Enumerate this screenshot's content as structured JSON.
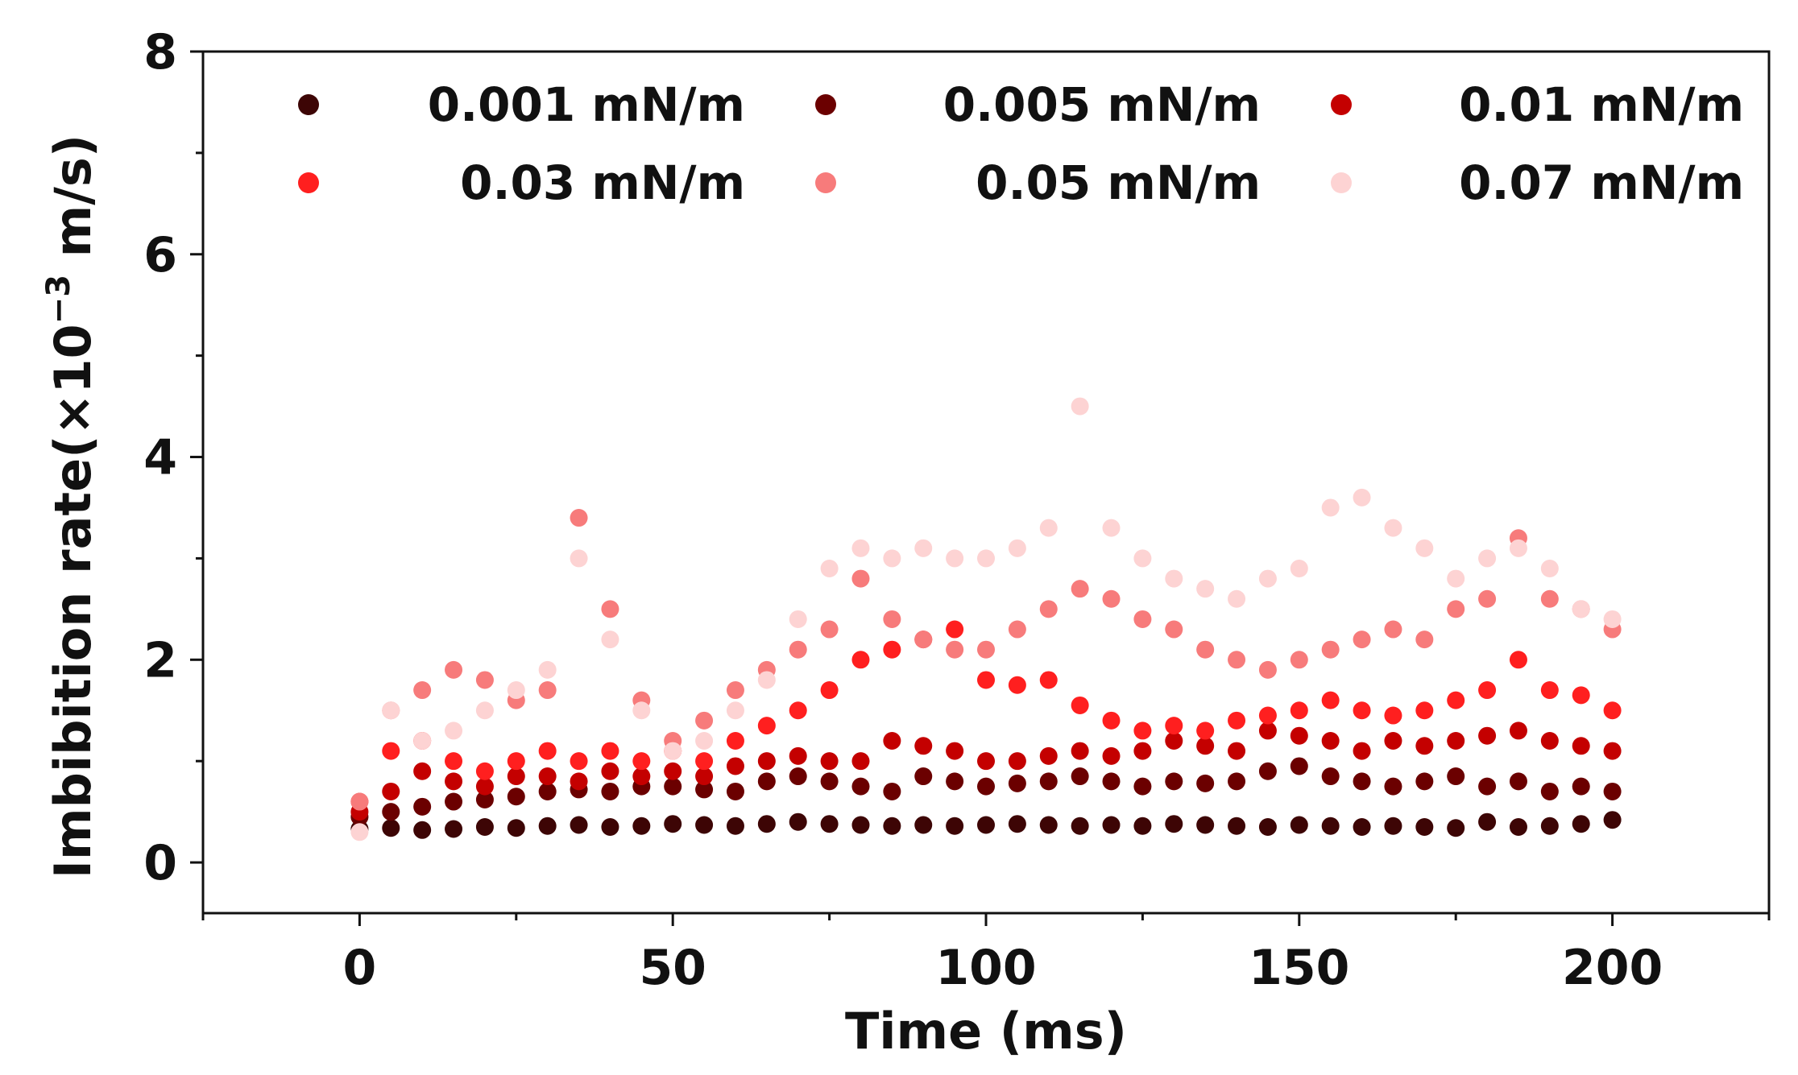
{
  "chart_data": {
    "type": "scatter",
    "title": "",
    "xlabel": "Time (ms)",
    "ylabel_prefix": "Imbibition rate(×10",
    "ylabel_exp": "−3",
    "ylabel_suffix": " m/s)",
    "xlim": [
      -25,
      225
    ],
    "ylim": [
      -0.5,
      8
    ],
    "x_ticks": [
      0,
      50,
      100,
      150,
      200
    ],
    "x_tick_labels": [
      "0",
      "50",
      "100",
      "150",
      "200"
    ],
    "y_ticks": [
      0,
      2,
      4,
      6,
      8
    ],
    "y_tick_labels": [
      "0",
      "2",
      "4",
      "6",
      "8"
    ],
    "grid": false,
    "legend_position": "top",
    "series": [
      {
        "name": "0.001 mN/m",
        "color": "#3d0505",
        "x": [
          0,
          5,
          10,
          15,
          20,
          25,
          30,
          35,
          40,
          45,
          50,
          55,
          60,
          65,
          70,
          75,
          80,
          85,
          90,
          95,
          100,
          105,
          110,
          115,
          120,
          125,
          130,
          135,
          140,
          145,
          150,
          155,
          160,
          165,
          170,
          175,
          180,
          185,
          190,
          195,
          200
        ],
        "y": [
          0.33,
          0.34,
          0.32,
          0.33,
          0.35,
          0.34,
          0.36,
          0.37,
          0.35,
          0.36,
          0.38,
          0.37,
          0.36,
          0.38,
          0.4,
          0.38,
          0.37,
          0.36,
          0.37,
          0.36,
          0.37,
          0.38,
          0.37,
          0.36,
          0.37,
          0.36,
          0.38,
          0.37,
          0.36,
          0.35,
          0.37,
          0.36,
          0.35,
          0.36,
          0.35,
          0.34,
          0.4,
          0.35,
          0.36,
          0.38,
          0.42
        ]
      },
      {
        "name": "0.005 mN/m",
        "color": "#6b0000",
        "x": [
          0,
          5,
          10,
          15,
          20,
          25,
          30,
          35,
          40,
          45,
          50,
          55,
          60,
          65,
          70,
          75,
          80,
          85,
          90,
          95,
          100,
          105,
          110,
          115,
          120,
          125,
          130,
          135,
          140,
          145,
          150,
          155,
          160,
          165,
          170,
          175,
          180,
          185,
          190,
          195,
          200
        ],
        "y": [
          0.45,
          0.5,
          0.55,
          0.6,
          0.62,
          0.65,
          0.7,
          0.72,
          0.7,
          0.75,
          0.75,
          0.72,
          0.7,
          0.8,
          0.85,
          0.8,
          0.75,
          0.7,
          0.85,
          0.8,
          0.75,
          0.78,
          0.8,
          0.85,
          0.8,
          0.75,
          0.8,
          0.78,
          0.8,
          0.9,
          0.95,
          0.85,
          0.8,
          0.75,
          0.8,
          0.85,
          0.75,
          0.8,
          0.7,
          0.75,
          0.7
        ]
      },
      {
        "name": "0.01 mN/m",
        "color": "#c40000",
        "x": [
          0,
          5,
          10,
          15,
          20,
          25,
          30,
          35,
          40,
          45,
          50,
          55,
          60,
          65,
          70,
          75,
          80,
          85,
          90,
          95,
          100,
          105,
          110,
          115,
          120,
          125,
          130,
          135,
          140,
          145,
          150,
          155,
          160,
          165,
          170,
          175,
          180,
          185,
          190,
          195,
          200
        ],
        "y": [
          0.5,
          0.7,
          0.9,
          0.8,
          0.75,
          0.85,
          0.85,
          0.8,
          0.9,
          0.85,
          0.9,
          0.85,
          0.95,
          1.0,
          1.05,
          1.0,
          1.0,
          1.2,
          1.15,
          1.1,
          1.0,
          1.0,
          1.05,
          1.1,
          1.05,
          1.1,
          1.2,
          1.15,
          1.1,
          1.3,
          1.25,
          1.2,
          1.1,
          1.2,
          1.15,
          1.2,
          1.25,
          1.3,
          1.2,
          1.15,
          1.1
        ]
      },
      {
        "name": "0.03 mN/m",
        "color": "#ff1f1f",
        "x": [
          0,
          5,
          10,
          15,
          20,
          25,
          30,
          35,
          40,
          45,
          50,
          55,
          60,
          65,
          70,
          75,
          80,
          85,
          90,
          95,
          100,
          105,
          110,
          115,
          120,
          125,
          130,
          135,
          140,
          145,
          150,
          155,
          160,
          165,
          170,
          175,
          180,
          185,
          190,
          195,
          200
        ],
        "y": [
          0.6,
          1.1,
          1.2,
          1.0,
          0.9,
          1.0,
          1.1,
          1.0,
          1.1,
          1.0,
          1.1,
          1.0,
          1.2,
          1.35,
          1.5,
          1.7,
          2.0,
          2.1,
          2.2,
          2.3,
          1.8,
          1.75,
          1.8,
          1.55,
          1.4,
          1.3,
          1.35,
          1.3,
          1.4,
          1.45,
          1.5,
          1.6,
          1.5,
          1.45,
          1.5,
          1.6,
          1.7,
          2.0,
          1.7,
          1.65,
          1.5
        ]
      },
      {
        "name": "0.05 mN/m",
        "color": "#f77b7b",
        "x": [
          0,
          5,
          10,
          15,
          20,
          25,
          30,
          35,
          40,
          45,
          50,
          55,
          60,
          65,
          70,
          75,
          80,
          85,
          90,
          95,
          100,
          105,
          110,
          115,
          120,
          125,
          130,
          135,
          140,
          145,
          150,
          155,
          160,
          165,
          170,
          175,
          180,
          185,
          190,
          195,
          200
        ],
        "y": [
          0.6,
          1.5,
          1.7,
          1.9,
          1.8,
          1.6,
          1.7,
          3.4,
          2.5,
          1.6,
          1.2,
          1.4,
          1.7,
          1.9,
          2.1,
          2.3,
          2.8,
          2.4,
          2.2,
          2.1,
          2.1,
          2.3,
          2.5,
          2.7,
          2.6,
          2.4,
          2.3,
          2.1,
          2.0,
          1.9,
          2.0,
          2.1,
          2.2,
          2.3,
          2.2,
          2.5,
          2.6,
          3.2,
          2.6,
          2.5,
          2.3
        ]
      },
      {
        "name": "0.07 mN/m",
        "color": "#fdd3d3",
        "x": [
          0,
          5,
          10,
          15,
          20,
          25,
          30,
          35,
          40,
          45,
          50,
          55,
          60,
          65,
          70,
          75,
          80,
          85,
          90,
          95,
          100,
          105,
          110,
          115,
          120,
          125,
          130,
          135,
          140,
          145,
          150,
          155,
          160,
          165,
          170,
          175,
          180,
          185,
          190,
          195,
          200
        ],
        "y": [
          0.3,
          1.5,
          1.2,
          1.3,
          1.5,
          1.7,
          1.9,
          3.0,
          2.2,
          1.5,
          1.1,
          1.2,
          1.5,
          1.8,
          2.4,
          2.9,
          3.1,
          3.0,
          3.1,
          3.0,
          3.0,
          3.1,
          3.3,
          4.5,
          3.3,
          3.0,
          2.8,
          2.7,
          2.6,
          2.8,
          2.9,
          3.5,
          3.6,
          3.3,
          3.1,
          2.8,
          3.0,
          3.1,
          2.9,
          2.5,
          2.4
        ]
      }
    ]
  }
}
